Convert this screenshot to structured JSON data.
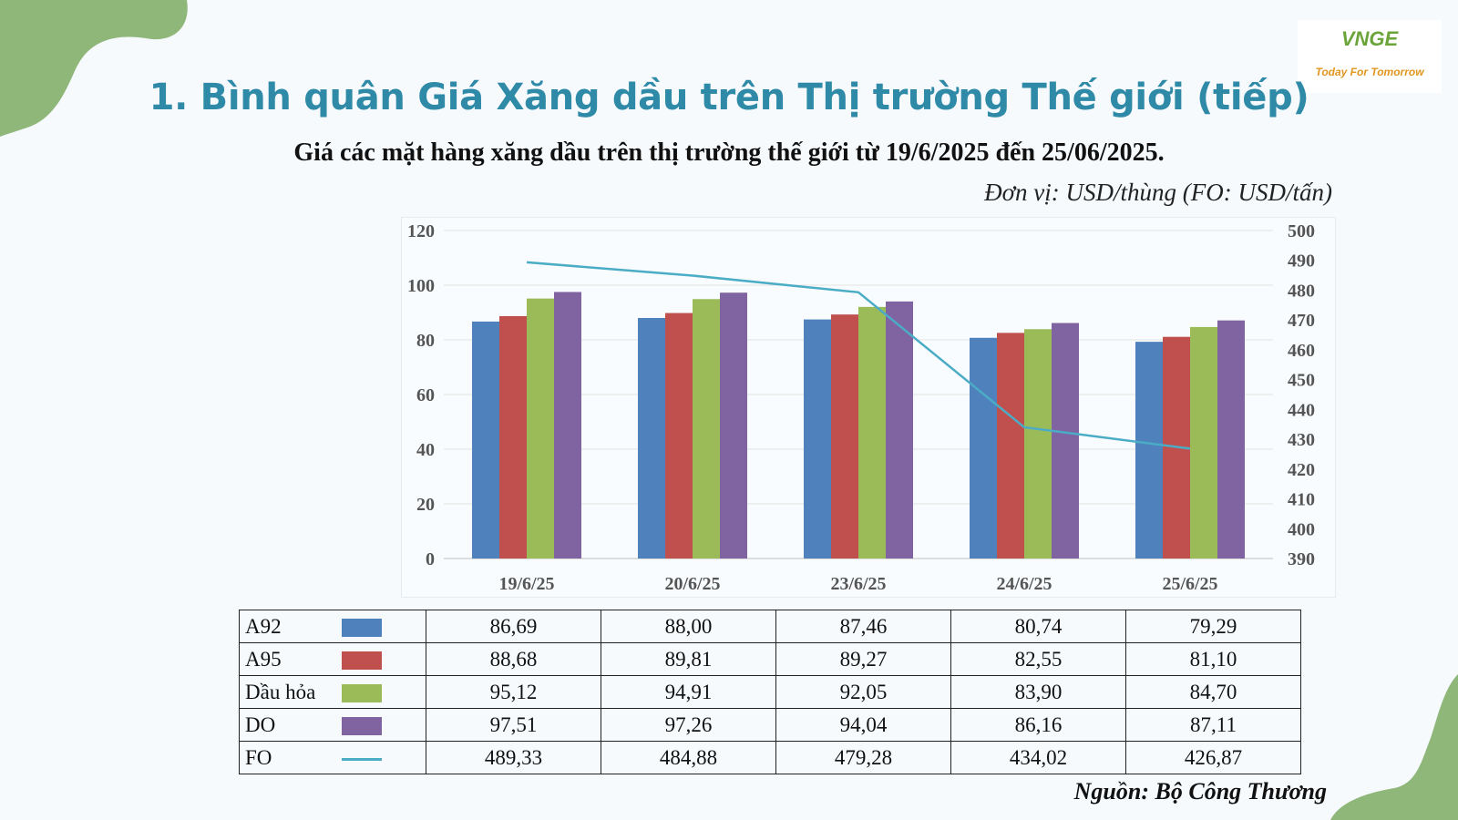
{
  "logo": {
    "mark": "VNGE",
    "tagline": "Today For Tomorrow"
  },
  "page_title": "1. Bình quân Giá Xăng dầu trên Thị trường Thế giới (tiếp)",
  "subtitle": "Giá các mặt hàng xăng dầu trên thị trường thế giới từ 19/6/2025 đến 25/06/2025.",
  "unit_note": "Đơn vị: USD/thùng (FO: USD/tấn)",
  "source_note": "Nguồn: Bộ Công Thương",
  "chart_data": {
    "type": "bar",
    "title": "",
    "xlabel": "",
    "ylabel": "",
    "categories": [
      "19/6/25",
      "20/6/25",
      "23/6/25",
      "24/6/25",
      "25/6/25"
    ],
    "ylim": [
      0,
      120
    ],
    "yticks": [
      0,
      20,
      40,
      60,
      80,
      100,
      120
    ],
    "y2lim": [
      390,
      500
    ],
    "y2ticks": [
      390,
      400,
      410,
      420,
      430,
      440,
      450,
      460,
      470,
      480,
      490,
      500
    ],
    "grid": true,
    "legend": "table-below",
    "series": [
      {
        "name": "A92",
        "type": "bar",
        "axis": "left",
        "color": "#4f81bd",
        "values": [
          86.69,
          88.0,
          87.46,
          80.74,
          79.29
        ],
        "labels": [
          "86,69",
          "88,00",
          "87,46",
          "80,74",
          "79,29"
        ]
      },
      {
        "name": "A95",
        "type": "bar",
        "axis": "left",
        "color": "#c0504d",
        "values": [
          88.68,
          89.81,
          89.27,
          82.55,
          81.1
        ],
        "labels": [
          "88,68",
          "89,81",
          "89,27",
          "82,55",
          "81,10"
        ]
      },
      {
        "name": "Dầu hỏa",
        "type": "bar",
        "axis": "left",
        "color": "#9bbb59",
        "values": [
          95.12,
          94.91,
          92.05,
          83.9,
          84.7
        ],
        "labels": [
          "95,12",
          "94,91",
          "92,05",
          "83,90",
          "84,70"
        ]
      },
      {
        "name": "DO",
        "type": "bar",
        "axis": "left",
        "color": "#8064a2",
        "values": [
          97.51,
          97.26,
          94.04,
          86.16,
          87.11
        ],
        "labels": [
          "97,51",
          "97,26",
          "94,04",
          "86,16",
          "87,11"
        ]
      },
      {
        "name": "FO",
        "type": "line",
        "axis": "right",
        "color": "#4bacc6",
        "values": [
          489.33,
          484.88,
          479.28,
          434.02,
          426.87
        ],
        "labels": [
          "489,33",
          "484,88",
          "479,28",
          "434,02",
          "426,87"
        ]
      }
    ]
  }
}
